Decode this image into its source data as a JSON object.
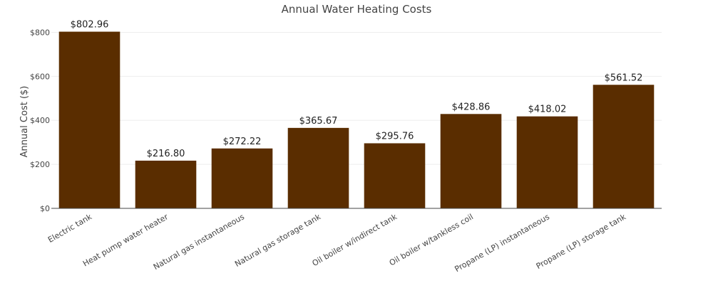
{
  "chart_data": {
    "type": "bar",
    "title": "Annual Water Heating Costs",
    "xlabel": "",
    "ylabel": "Annual Cost ($)",
    "ylim": [
      0,
      850
    ],
    "yticks": [
      0,
      200,
      400,
      600,
      800
    ],
    "ytick_labels": [
      "$0",
      "$200",
      "$400",
      "$600",
      "$800"
    ],
    "grid": true,
    "bar_color": "#5a2d00",
    "categories": [
      "Electric tank",
      "Heat pump water heater",
      "Natural gas instantaneous",
      "Natural gas storage tank",
      "Oil boiler w/indirect tank",
      "Oil boiler w/tankless coil",
      "Propane (LP) instantaneous",
      "Propane (LP) storage tank"
    ],
    "values": [
      802.96,
      216.8,
      272.22,
      365.67,
      295.76,
      428.86,
      418.02,
      561.52
    ],
    "value_labels": [
      "$802.96",
      "$216.80",
      "$272.22",
      "$365.67",
      "$295.76",
      "$428.86",
      "$418.02",
      "$561.52"
    ]
  }
}
